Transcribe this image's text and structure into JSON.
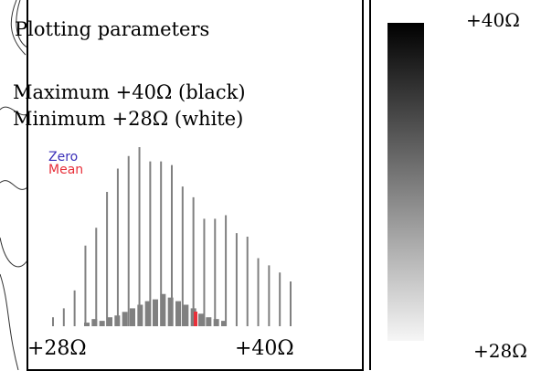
{
  "panel": {
    "title": "Plotting parameters",
    "maximum_line": "Maximum +40Ω (black)",
    "minimum_line": "Minimum +28Ω (white)"
  },
  "histogram": {
    "legend_zero": "Zero",
    "legend_mean": "Mean",
    "x_min_label": "+28Ω",
    "x_max_label": "+40Ω",
    "colors": {
      "bars": "#808080",
      "zero": "#3a2fb8",
      "mean": "#e8303a"
    },
    "tall_bar_fractions": [
      0.05,
      0.1,
      0.2,
      0.45,
      0.55,
      0.75,
      0.88,
      0.95,
      1.0,
      0.92,
      0.92,
      0.9,
      0.78,
      0.72,
      0.6,
      0.6,
      0.62,
      0.52,
      0.5,
      0.38,
      0.34,
      0.3,
      0.25
    ],
    "low_bar_fractions": [
      0.02,
      0.04,
      0.03,
      0.05,
      0.06,
      0.08,
      0.1,
      0.12,
      0.14,
      0.15,
      0.18,
      0.16,
      0.14,
      0.12,
      0.1,
      0.07,
      0.05,
      0.04,
      0.03
    ],
    "mean_fraction": 0.6
  },
  "scale": {
    "top_label": "+40Ω",
    "bottom_label": "+28Ω",
    "colors": {
      "top": "#000000",
      "bottom": "#f6f6f6"
    }
  }
}
